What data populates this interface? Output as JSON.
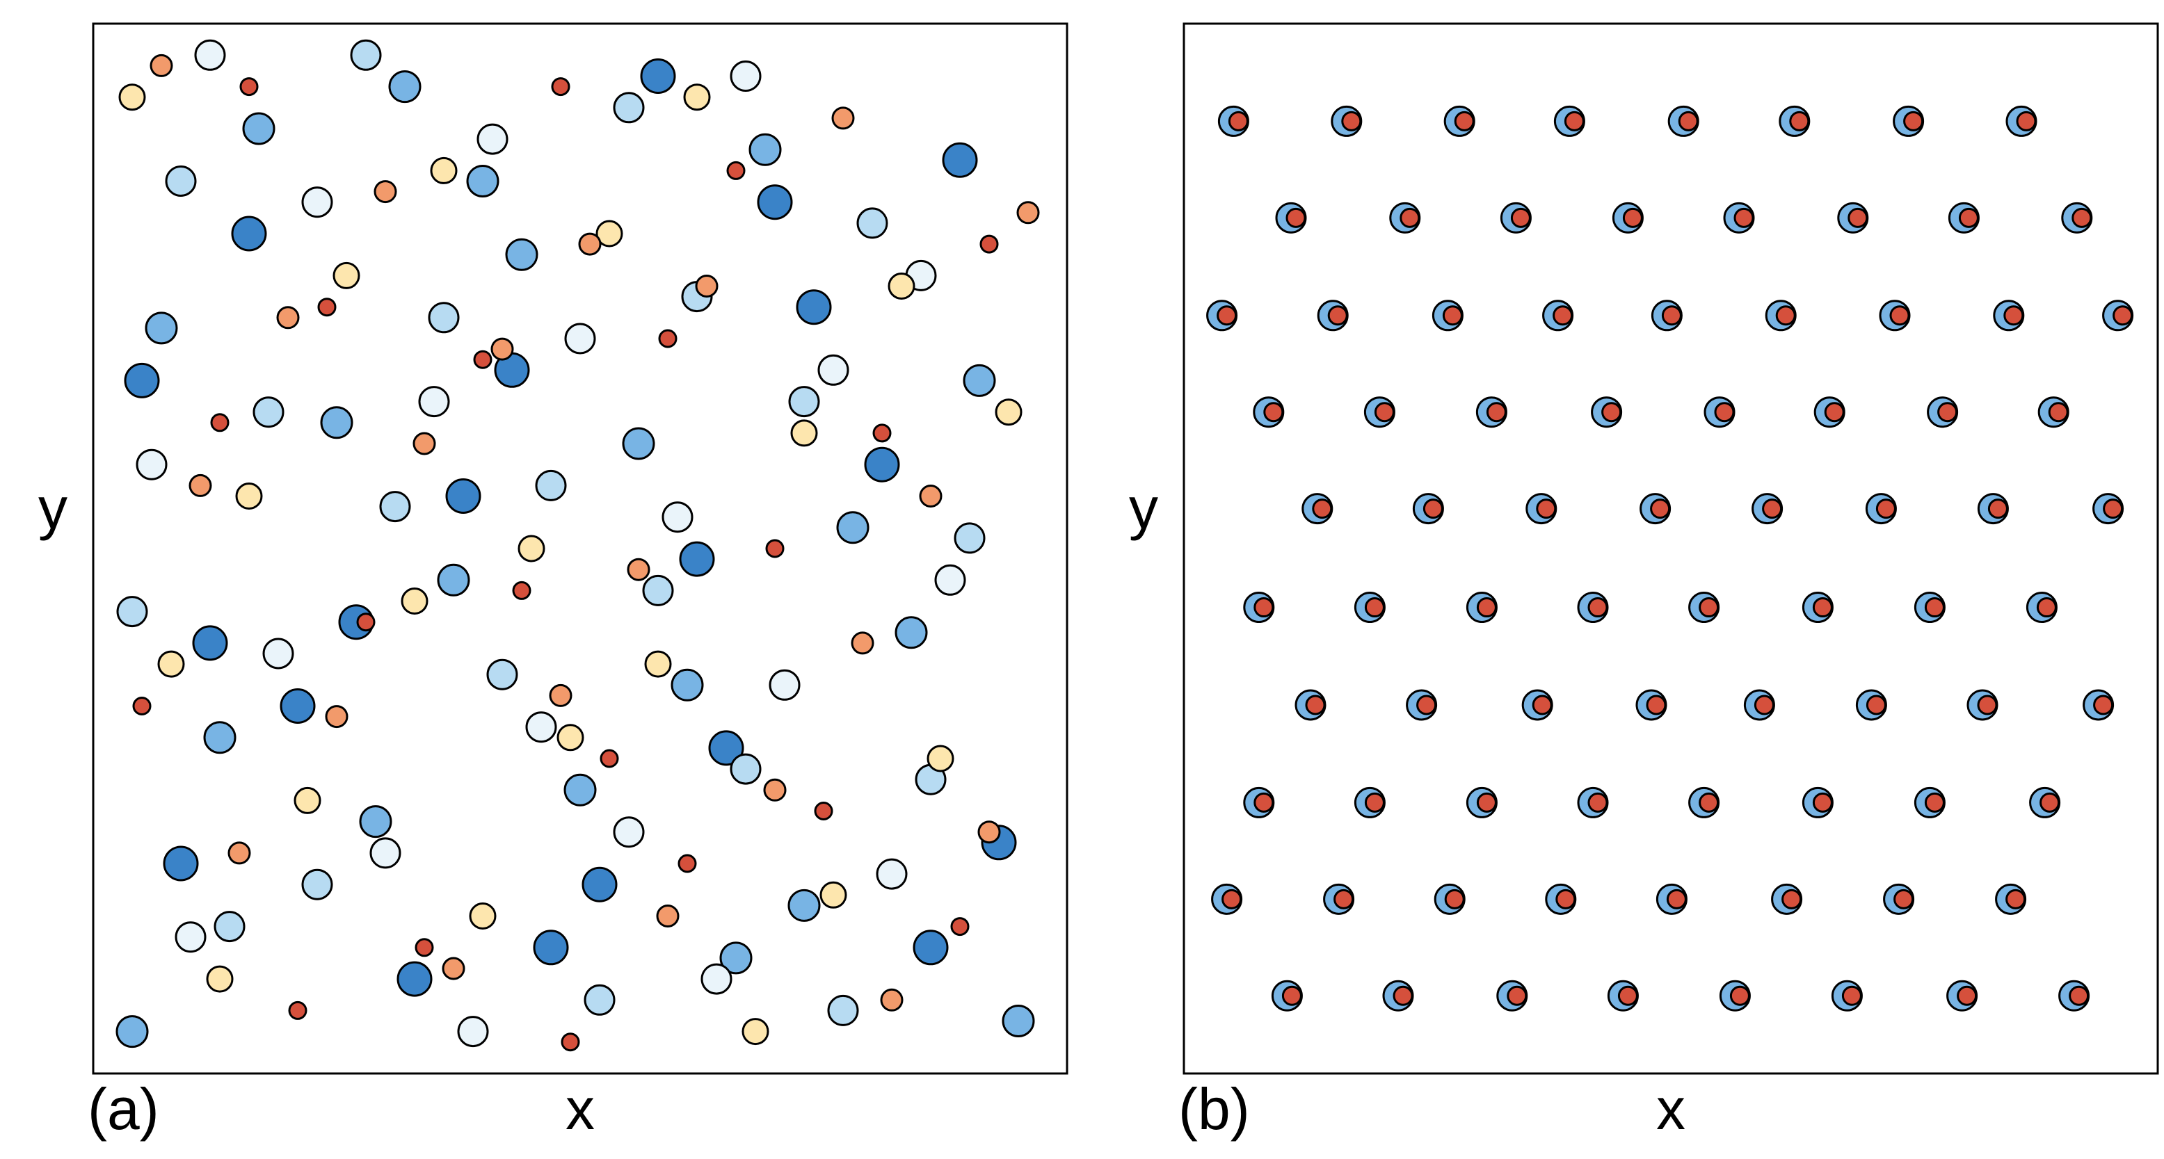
{
  "chart_data": [
    {
      "type": "scatter",
      "panel_label": "(a)",
      "xlabel": "x",
      "ylabel": "y",
      "xlim": [
        0,
        1
      ],
      "ylim": [
        0,
        1
      ],
      "series": [
        {
          "color": "#3a83c8",
          "x": [
            0.58,
            0.89,
            0.16,
            0.74,
            0.38,
            0.05,
            0.93,
            0.47,
            0.27,
            0.65,
            0.12,
            0.81,
            0.52,
            0.33,
            0.7,
            0.21,
            0.86,
            0.43,
            0.62,
            0.09
          ],
          "values": [
            0.95,
            0.87,
            0.8,
            0.73,
            0.55,
            0.66,
            0.22,
            0.12,
            0.43,
            0.31,
            0.41,
            0.58,
            0.18,
            0.09,
            0.83,
            0.35,
            0.12,
            0.67,
            0.49,
            0.2
          ]
        },
        {
          "color": "#78b4e4",
          "x": [
            0.17,
            0.32,
            0.44,
            0.69,
            0.91,
            0.07,
            0.25,
            0.56,
            0.78,
            0.37,
            0.13,
            0.61,
            0.84,
            0.29,
            0.5,
            0.73,
            0.04,
            0.95,
            0.4,
            0.66
          ],
          "values": [
            0.9,
            0.94,
            0.78,
            0.88,
            0.66,
            0.71,
            0.62,
            0.6,
            0.52,
            0.47,
            0.32,
            0.37,
            0.42,
            0.24,
            0.27,
            0.16,
            0.04,
            0.05,
            0.85,
            0.11
          ]
        },
        {
          "color": "#b7dbf2",
          "x": [
            0.09,
            0.28,
            0.55,
            0.8,
            0.36,
            0.62,
            0.18,
            0.47,
            0.73,
            0.9,
            0.04,
            0.42,
            0.67,
            0.23,
            0.52,
            0.86,
            0.31,
            0.77,
            0.14,
            0.58
          ],
          "values": [
            0.85,
            0.97,
            0.92,
            0.81,
            0.72,
            0.74,
            0.63,
            0.56,
            0.64,
            0.51,
            0.44,
            0.38,
            0.29,
            0.18,
            0.07,
            0.28,
            0.54,
            0.06,
            0.14,
            0.46
          ]
        },
        {
          "color": "#eaf4fa",
          "x": [
            0.12,
            0.41,
            0.67,
            0.85,
            0.23,
            0.5,
            0.76,
            0.06,
            0.35,
            0.6,
            0.88,
            0.19,
            0.46,
            0.71,
            0.3,
            0.55,
            0.82,
            0.1,
            0.39,
            0.64
          ],
          "values": [
            0.97,
            0.89,
            0.95,
            0.76,
            0.83,
            0.7,
            0.67,
            0.58,
            0.64,
            0.53,
            0.47,
            0.4,
            0.33,
            0.37,
            0.21,
            0.23,
            0.19,
            0.13,
            0.04,
            0.09
          ]
        },
        {
          "color": "#fde6ae",
          "x": [
            0.04,
            0.36,
            0.62,
            0.83,
            0.26,
            0.53,
            0.94,
            0.16,
            0.45,
            0.73,
            0.08,
            0.33,
            0.58,
            0.87,
            0.22,
            0.49,
            0.76,
            0.13,
            0.4,
            0.68
          ],
          "values": [
            0.93,
            0.86,
            0.93,
            0.75,
            0.76,
            0.8,
            0.63,
            0.55,
            0.5,
            0.61,
            0.39,
            0.45,
            0.39,
            0.3,
            0.26,
            0.32,
            0.17,
            0.09,
            0.15,
            0.04
          ]
        },
        {
          "color": "#f29a6b",
          "x": [
            0.07,
            0.3,
            0.51,
            0.77,
            0.96,
            0.2,
            0.42,
            0.63,
            0.86,
            0.11,
            0.34,
            0.56,
            0.79,
            0.25,
            0.48,
            0.7,
            0.92,
            0.15,
            0.37,
            0.59,
            0.82
          ],
          "values": [
            0.96,
            0.84,
            0.79,
            0.91,
            0.82,
            0.72,
            0.69,
            0.75,
            0.55,
            0.56,
            0.6,
            0.48,
            0.41,
            0.34,
            0.36,
            0.27,
            0.23,
            0.21,
            0.1,
            0.15,
            0.07
          ]
        },
        {
          "color": "#d5503c",
          "x": [
            0.16,
            0.48,
            0.66,
            0.92,
            0.24,
            0.4,
            0.59,
            0.81,
            0.13,
            0.44,
            0.7,
            0.05,
            0.28,
            0.53,
            0.75,
            0.34,
            0.61,
            0.89,
            0.21,
            0.49
          ],
          "values": [
            0.94,
            0.94,
            0.86,
            0.79,
            0.73,
            0.68,
            0.7,
            0.61,
            0.62,
            0.46,
            0.5,
            0.35,
            0.43,
            0.3,
            0.25,
            0.12,
            0.2,
            0.14,
            0.06,
            0.03
          ]
        }
      ]
    },
    {
      "type": "scatter",
      "panel_label": "(b)",
      "xlabel": "x",
      "ylabel": "y",
      "xlim": [
        0,
        1
      ],
      "ylim": [
        0,
        1
      ],
      "series": [
        {
          "color": "#78b4e4",
          "x": [
            0.051,
            0.167,
            0.283,
            0.396,
            0.513,
            0.627,
            0.744,
            0.86,
            0.11,
            0.227,
            0.341,
            0.456,
            0.57,
            0.687,
            0.801,
            0.917,
            0.039,
            0.153,
            0.271,
            0.384,
            0.496,
            0.613,
            0.73,
            0.847,
            0.959,
            0.087,
            0.201,
            0.316,
            0.434,
            0.55,
            0.663,
            0.779,
            0.893,
            0.137,
            0.251,
            0.367,
            0.484,
            0.599,
            0.716,
            0.831,
            0.949,
            0.077,
            0.191,
            0.306,
            0.42,
            0.534,
            0.651,
            0.766,
            0.881,
            0.13,
            0.244,
            0.363,
            0.48,
            0.591,
            0.706,
            0.82,
            0.939,
            0.077,
            0.191,
            0.306,
            0.42,
            0.534,
            0.651,
            0.766,
            0.884,
            0.044,
            0.159,
            0.273,
            0.387,
            0.501,
            0.619,
            0.734,
            0.849,
            0.106,
            0.22,
            0.337,
            0.451,
            0.566,
            0.681,
            0.799,
            0.914
          ],
          "values": [
            0.907,
            0.907,
            0.907,
            0.907,
            0.907,
            0.907,
            0.907,
            0.907,
            0.815,
            0.815,
            0.815,
            0.815,
            0.815,
            0.815,
            0.815,
            0.815,
            0.722,
            0.722,
            0.722,
            0.722,
            0.722,
            0.722,
            0.722,
            0.722,
            0.722,
            0.63,
            0.63,
            0.63,
            0.63,
            0.63,
            0.63,
            0.63,
            0.63,
            0.538,
            0.538,
            0.538,
            0.538,
            0.538,
            0.538,
            0.538,
            0.538,
            0.444,
            0.444,
            0.444,
            0.444,
            0.444,
            0.444,
            0.444,
            0.444,
            0.351,
            0.351,
            0.351,
            0.351,
            0.351,
            0.351,
            0.351,
            0.351,
            0.258,
            0.258,
            0.258,
            0.258,
            0.258,
            0.258,
            0.258,
            0.258,
            0.166,
            0.166,
            0.166,
            0.166,
            0.166,
            0.166,
            0.166,
            0.166,
            0.074,
            0.074,
            0.074,
            0.074,
            0.074,
            0.074,
            0.074,
            0.074
          ]
        },
        {
          "color": "#d5503c",
          "x": [
            0.056,
            0.172,
            0.288,
            0.401,
            0.518,
            0.632,
            0.749,
            0.865,
            0.115,
            0.232,
            0.346,
            0.461,
            0.575,
            0.692,
            0.806,
            0.922,
            0.044,
            0.158,
            0.276,
            0.389,
            0.501,
            0.618,
            0.735,
            0.852,
            0.964,
            0.092,
            0.206,
            0.321,
            0.439,
            0.555,
            0.668,
            0.784,
            0.898,
            0.142,
            0.256,
            0.372,
            0.489,
            0.604,
            0.721,
            0.836,
            0.954,
            0.082,
            0.196,
            0.311,
            0.425,
            0.539,
            0.656,
            0.771,
            0.886,
            0.135,
            0.249,
            0.368,
            0.485,
            0.596,
            0.711,
            0.825,
            0.944,
            0.082,
            0.196,
            0.311,
            0.425,
            0.539,
            0.656,
            0.771,
            0.889,
            0.049,
            0.164,
            0.278,
            0.392,
            0.506,
            0.624,
            0.739,
            0.854,
            0.111,
            0.225,
            0.342,
            0.456,
            0.571,
            0.686,
            0.804,
            0.919
          ],
          "values": [
            0.907,
            0.907,
            0.907,
            0.907,
            0.907,
            0.907,
            0.907,
            0.907,
            0.815,
            0.815,
            0.815,
            0.815,
            0.815,
            0.815,
            0.815,
            0.815,
            0.722,
            0.722,
            0.722,
            0.722,
            0.722,
            0.722,
            0.722,
            0.722,
            0.722,
            0.63,
            0.63,
            0.63,
            0.63,
            0.63,
            0.63,
            0.63,
            0.63,
            0.538,
            0.538,
            0.538,
            0.538,
            0.538,
            0.538,
            0.538,
            0.538,
            0.444,
            0.444,
            0.444,
            0.444,
            0.444,
            0.444,
            0.444,
            0.444,
            0.351,
            0.351,
            0.351,
            0.351,
            0.351,
            0.351,
            0.351,
            0.351,
            0.258,
            0.258,
            0.258,
            0.258,
            0.258,
            0.258,
            0.258,
            0.258,
            0.166,
            0.166,
            0.166,
            0.166,
            0.166,
            0.166,
            0.166,
            0.166,
            0.074,
            0.074,
            0.074,
            0.074,
            0.074,
            0.074,
            0.074,
            0.074
          ]
        }
      ]
    }
  ]
}
